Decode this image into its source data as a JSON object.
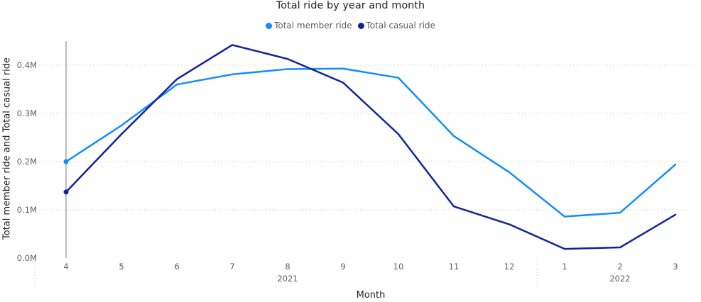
{
  "chart_data": {
    "type": "line",
    "title": "Total ride by year and month",
    "xlabel": "Month",
    "ylabel": "Total member ride and Total casual ride",
    "x": [
      "4",
      "5",
      "6",
      "7",
      "8",
      "9",
      "10",
      "11",
      "12",
      "1",
      "2",
      "3"
    ],
    "year_groups": [
      {
        "label": "2021",
        "start_index": 0,
        "end_index": 8
      },
      {
        "label": "2022",
        "start_index": 9,
        "end_index": 11
      }
    ],
    "yticks": [
      "0.0M",
      "0.1M",
      "0.2M",
      "0.3M",
      "0.4M"
    ],
    "ylim": [
      0,
      400000
    ],
    "grid": true,
    "legend_position": "top-center",
    "series": [
      {
        "name": "Total member ride",
        "color": "#118DFF",
        "values": [
          200000,
          275000,
          360000,
          381000,
          392000,
          393000,
          374000,
          253000,
          178000,
          86000,
          94000,
          194000
        ]
      },
      {
        "name": "Total casual ride",
        "color": "#12239E",
        "values": [
          137000,
          257000,
          371000,
          442000,
          413000,
          364000,
          257000,
          107000,
          70000,
          19000,
          22000,
          90000
        ]
      }
    ]
  }
}
